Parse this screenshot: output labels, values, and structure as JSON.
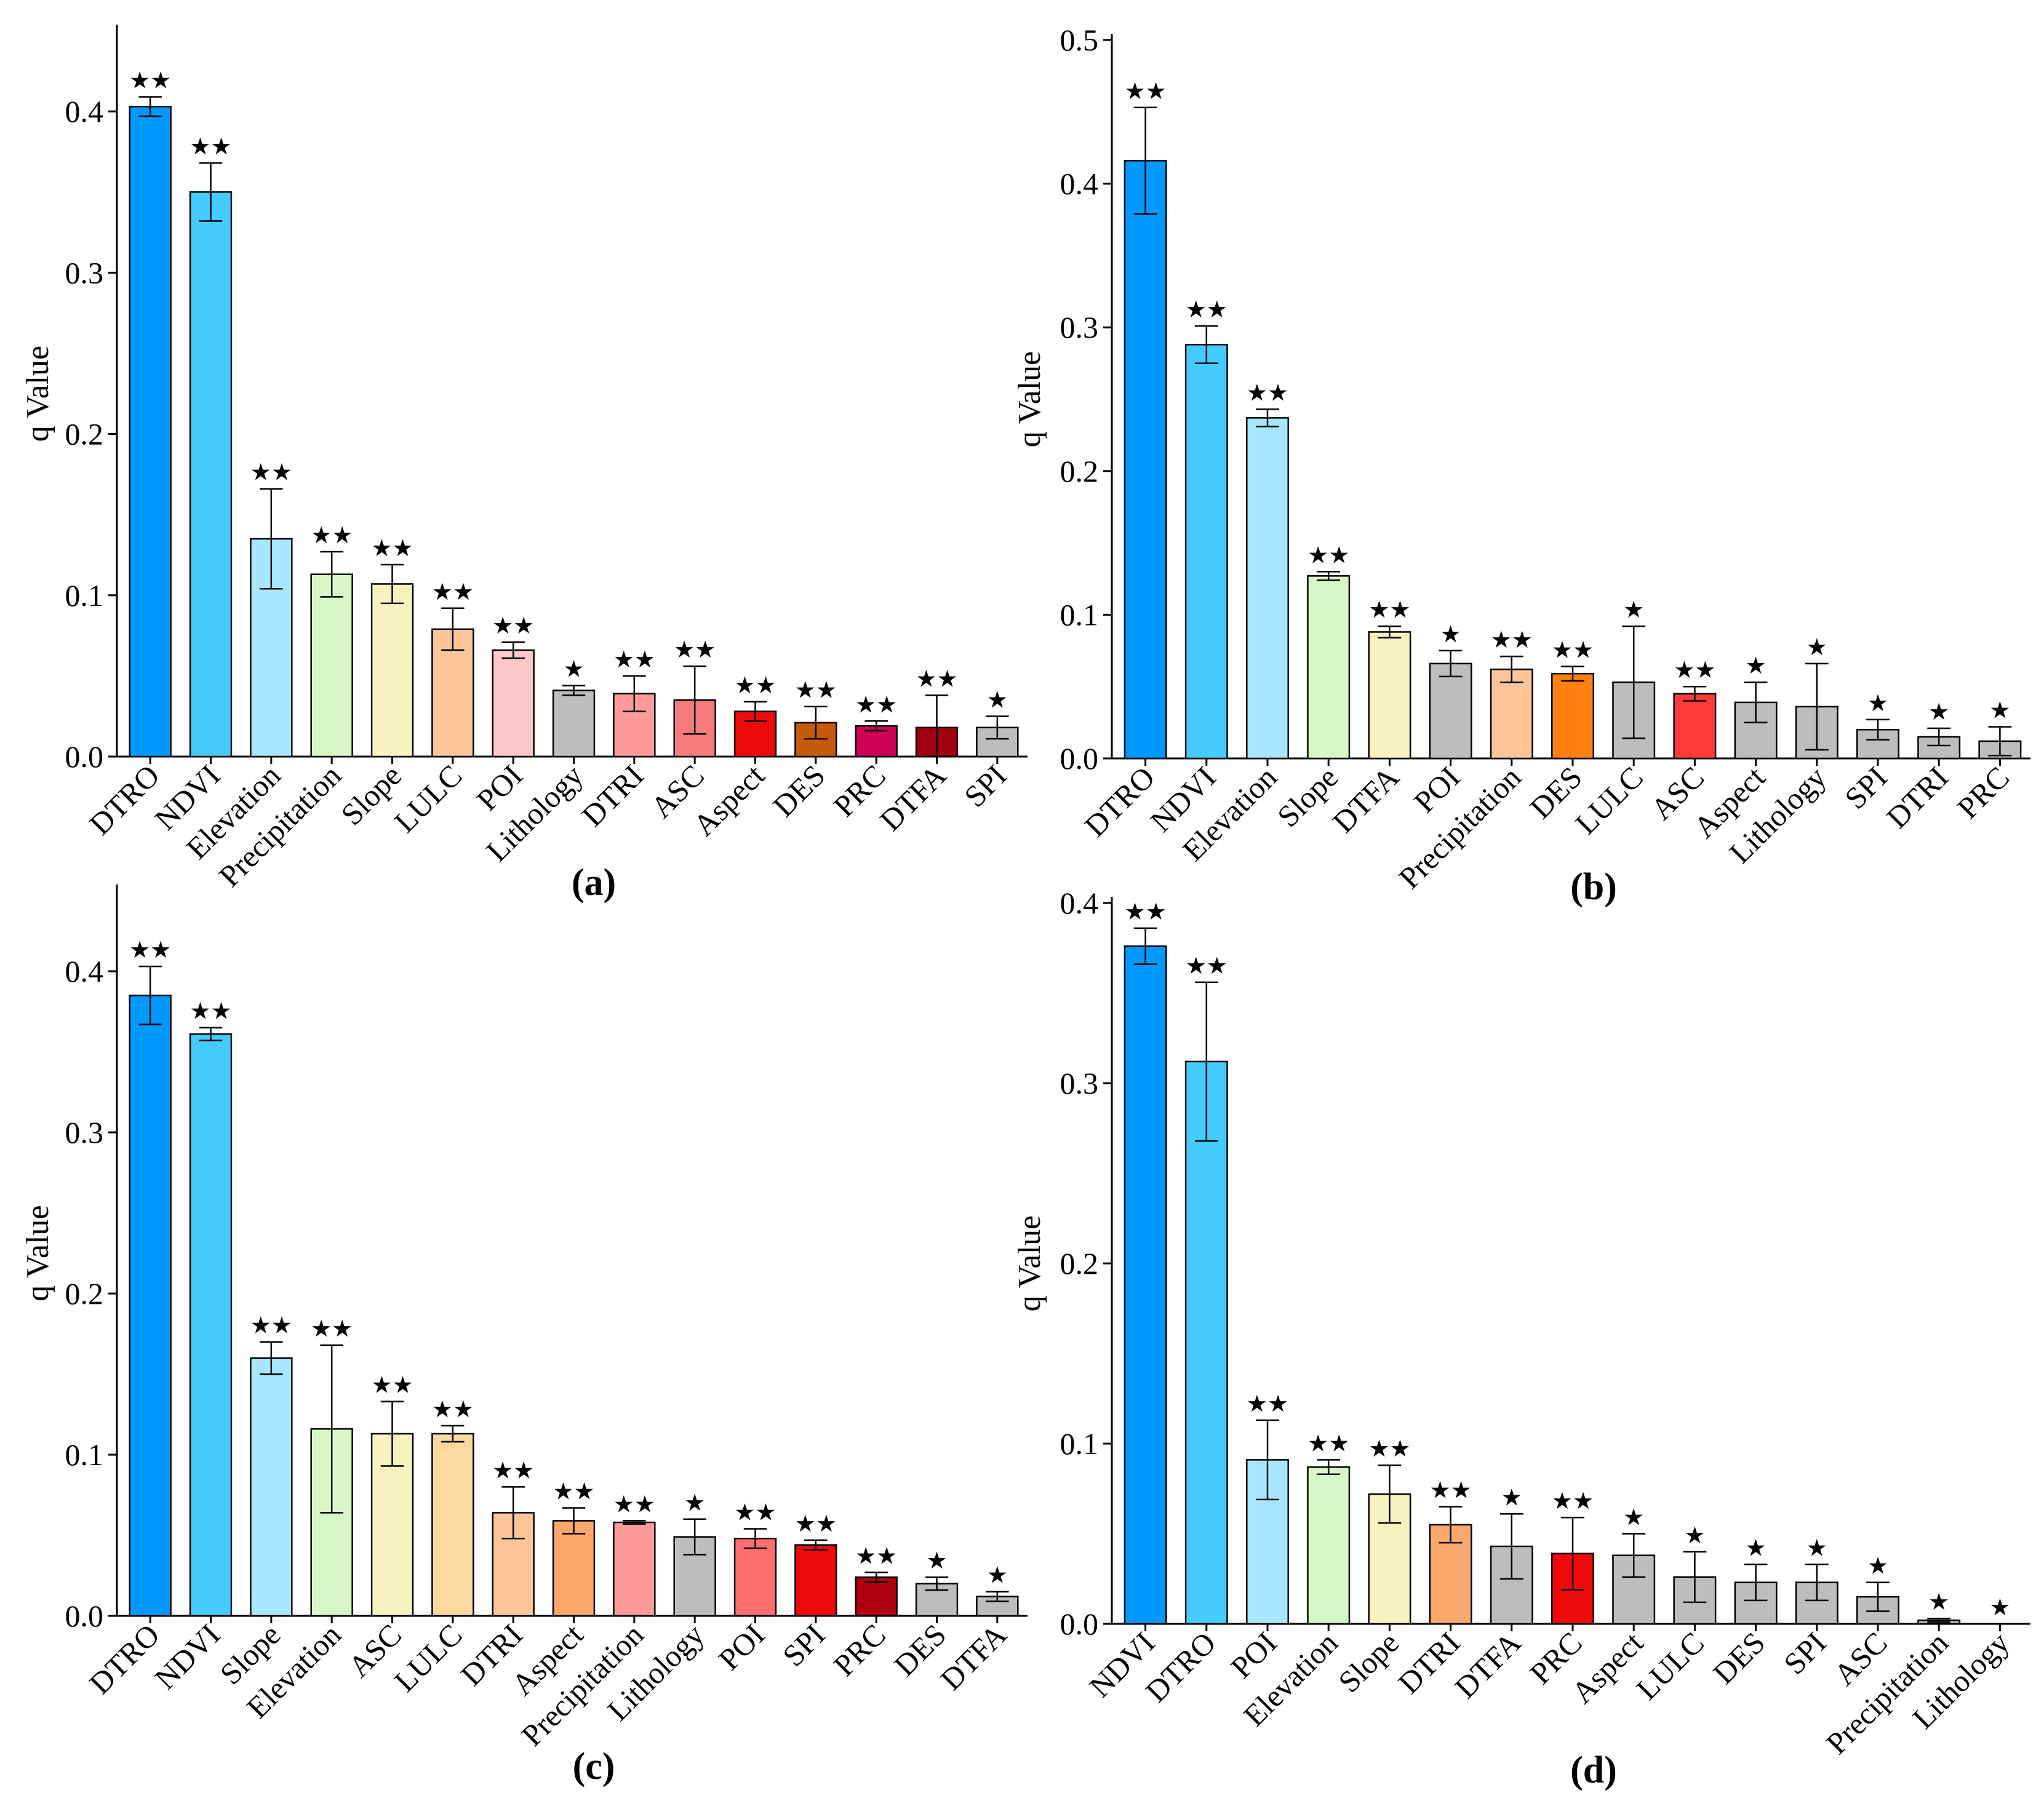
{
  "chart_data": [
    {
      "type": "bar",
      "panel_label": "(a)",
      "ylabel": "q Value",
      "ylim": [
        0,
        0.45
      ],
      "yticks": [
        "0.0",
        "0.1",
        "0.2",
        "0.3",
        "0.4"
      ],
      "categories": [
        "DTRO",
        "NDVI",
        "Elevation",
        "Precipitation",
        "Slope",
        "LULC",
        "POI",
        "Lithology",
        "DTRI",
        "ASC",
        "Aspect",
        "DES",
        "PRC",
        "DTFA",
        "SPI"
      ],
      "values": [
        0.403,
        0.35,
        0.135,
        0.113,
        0.107,
        0.079,
        0.066,
        0.041,
        0.039,
        0.035,
        0.028,
        0.021,
        0.019,
        0.018,
        0.018
      ],
      "errors": [
        0.006,
        0.018,
        0.031,
        0.014,
        0.012,
        0.013,
        0.005,
        0.003,
        0.011,
        0.021,
        0.006,
        0.01,
        0.003,
        0.02,
        0.007
      ],
      "significance": [
        "★★",
        "★★",
        "★★",
        "★★",
        "★★",
        "★★",
        "★★",
        "★",
        "★★",
        "★★",
        "★★",
        "★★",
        "★★",
        "★★",
        "★"
      ],
      "colors": [
        "#0099ff",
        "#44ccff",
        "#a6e6ff",
        "#d8f7c6",
        "#f7f3bf",
        "#fcc69a",
        "#ffc8c8",
        "#bdbdbd",
        "#ff9a9a",
        "#f77b7b",
        "#ee0a0a",
        "#c55a0b",
        "#cc0055",
        "#a00010",
        "#bdbdbd"
      ]
    },
    {
      "type": "bar",
      "panel_label": "(b)",
      "ylabel": "q Value",
      "ylim": [
        0,
        0.5
      ],
      "yticks": [
        "0.0",
        "0.1",
        "0.2",
        "0.3",
        "0.4",
        "0.5"
      ],
      "categories": [
        "DTRO",
        "NDVI",
        "Elevation",
        "Slope",
        "DTFA",
        "POI",
        "Precipitation",
        "DES",
        "LULC",
        "ASC",
        "Aspect",
        "Lithology",
        "SPI",
        "DTRI",
        "PRC"
      ],
      "values": [
        0.416,
        0.288,
        0.237,
        0.127,
        0.088,
        0.066,
        0.062,
        0.059,
        0.053,
        0.045,
        0.039,
        0.036,
        0.02,
        0.015,
        0.012
      ],
      "errors": [
        0.037,
        0.013,
        0.006,
        0.003,
        0.004,
        0.009,
        0.009,
        0.005,
        0.039,
        0.005,
        0.014,
        0.03,
        0.007,
        0.006,
        0.01
      ],
      "significance": [
        "★★",
        "★★",
        "★★",
        "★★",
        "★★",
        "★",
        "★★",
        "★★",
        "★",
        "★★",
        "★",
        "★",
        "★",
        "★",
        "★"
      ],
      "colors": [
        "#0099ff",
        "#44ccff",
        "#a6e6ff",
        "#d8f7c6",
        "#f7f3bf",
        "#bdbdbd",
        "#fcc69a",
        "#ff8010",
        "#bdbdbd",
        "#ff3a3a",
        "#bdbdbd",
        "#bdbdbd",
        "#bdbdbd",
        "#bdbdbd",
        "#bdbdbd"
      ]
    },
    {
      "type": "bar",
      "panel_label": "(c)",
      "ylabel": "q Value",
      "ylim": [
        0,
        0.45
      ],
      "yticks": [
        "0.0",
        "0.1",
        "0.2",
        "0.3",
        "0.4"
      ],
      "categories": [
        "DTRO",
        "NDVI",
        "Slope",
        "Elevation",
        "ASC",
        "LULC",
        "DTRI",
        "Aspect",
        "Precipitation",
        "Lithology",
        "POI",
        "SPI",
        "PRC",
        "DES",
        "DTFA"
      ],
      "values": [
        0.385,
        0.361,
        0.16,
        0.116,
        0.113,
        0.113,
        0.064,
        0.059,
        0.058,
        0.049,
        0.048,
        0.044,
        0.024,
        0.02,
        0.012
      ],
      "errors": [
        0.018,
        0.004,
        0.01,
        0.052,
        0.02,
        0.005,
        0.016,
        0.008,
        0.001,
        0.011,
        0.006,
        0.003,
        0.003,
        0.004,
        0.003
      ],
      "significance": [
        "★★",
        "★★",
        "★★",
        "★★",
        "★★",
        "★★",
        "★★",
        "★★",
        "★★",
        "★",
        "★★",
        "★★",
        "★★",
        "★",
        "★"
      ],
      "colors": [
        "#0099ff",
        "#44ccff",
        "#a6e6ff",
        "#d8f7c6",
        "#f7f3bf",
        "#fbd99e",
        "#fcc69a",
        "#fba86c",
        "#ff9a9a",
        "#bdbdbd",
        "#ff6f6f",
        "#ee0a0a",
        "#b00010",
        "#bdbdbd",
        "#bdbdbd"
      ]
    },
    {
      "type": "bar",
      "panel_label": "(d)",
      "ylabel": "q Value",
      "ylim": [
        0,
        0.4
      ],
      "yticks": [
        "0.0",
        "0.1",
        "0.2",
        "0.3",
        "0.4"
      ],
      "categories": [
        "NDVI",
        "DTRO",
        "POI",
        "Elevation",
        "Slope",
        "DTRI",
        "DTFA",
        "PRC",
        "Aspect",
        "LULC",
        "DES",
        "SPI",
        "ASC",
        "Precipitation",
        "Lithology"
      ],
      "values": [
        0.376,
        0.312,
        0.091,
        0.087,
        0.072,
        0.055,
        0.043,
        0.039,
        0.038,
        0.026,
        0.023,
        0.023,
        0.015,
        0.002,
        0.0
      ],
      "errors": [
        0.01,
        0.044,
        0.022,
        0.004,
        0.016,
        0.01,
        0.018,
        0.02,
        0.012,
        0.014,
        0.01,
        0.01,
        0.008,
        0.001,
        0.0
      ],
      "significance": [
        "★★",
        "★★",
        "★★",
        "★★",
        "★★",
        "★★",
        "★",
        "★★",
        "★",
        "★",
        "★",
        "★",
        "★",
        "★",
        "★"
      ],
      "colors": [
        "#0099ff",
        "#44ccff",
        "#a6e6ff",
        "#d8f7c6",
        "#f7f3bf",
        "#fba86c",
        "#bdbdbd",
        "#ee0a0a",
        "#bdbdbd",
        "#bdbdbd",
        "#bdbdbd",
        "#bdbdbd",
        "#bdbdbd",
        "#bdbdbd",
        "#bdbdbd"
      ]
    }
  ]
}
